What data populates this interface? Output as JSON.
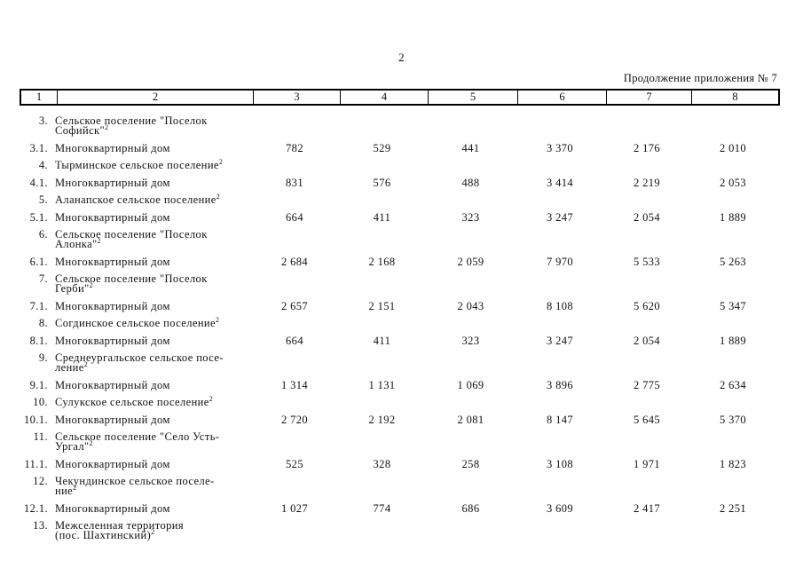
{
  "page": {
    "number": "2",
    "continuation_note": "Продолжение приложения № 7"
  },
  "table": {
    "header_cells": [
      "1",
      "2",
      "3",
      "4",
      "5",
      "6",
      "7",
      "8"
    ],
    "rows": [
      {
        "num": "3.",
        "name_lines": [
          "Сельское поселение \"Поселок",
          "Софийск\""
        ],
        "superscript": "2",
        "values": [
          "",
          "",
          "",
          "",
          "",
          ""
        ]
      },
      {
        "num": "3.1.",
        "name_lines": [
          "Многоквартирный дом"
        ],
        "superscript": "",
        "values": [
          "782",
          "529",
          "441",
          "3 370",
          "2 176",
          "2 010"
        ]
      },
      {
        "num": "4.",
        "name_lines": [
          "Тырминское сельское поселение"
        ],
        "superscript": "2",
        "values": [
          "",
          "",
          "",
          "",
          "",
          ""
        ]
      },
      {
        "num": "4.1.",
        "name_lines": [
          "Многоквартирный дом"
        ],
        "superscript": "",
        "values": [
          "831",
          "576",
          "488",
          "3 414",
          "2 219",
          "2 053"
        ]
      },
      {
        "num": "5.",
        "name_lines": [
          "Аланапское сельское поселение"
        ],
        "superscript": "2",
        "values": [
          "",
          "",
          "",
          "",
          "",
          ""
        ]
      },
      {
        "num": "5.1.",
        "name_lines": [
          "Многоквартирный дом"
        ],
        "superscript": "",
        "values": [
          "664",
          "411",
          "323",
          "3 247",
          "2 054",
          "1 889"
        ]
      },
      {
        "num": "6.",
        "name_lines": [
          "Сельское поселение \"Поселок",
          "Алонка\""
        ],
        "superscript": "2",
        "values": [
          "",
          "",
          "",
          "",
          "",
          ""
        ]
      },
      {
        "num": "6.1.",
        "name_lines": [
          "Многоквартирный дом"
        ],
        "superscript": "",
        "values": [
          "2 684",
          "2 168",
          "2 059",
          "7 970",
          "5 533",
          "5 263"
        ]
      },
      {
        "num": "7.",
        "name_lines": [
          "Сельское поселение \"Поселок",
          "Герби\""
        ],
        "superscript": "2",
        "values": [
          "",
          "",
          "",
          "",
          "",
          ""
        ]
      },
      {
        "num": "7.1.",
        "name_lines": [
          "Многоквартирный дом"
        ],
        "superscript": "",
        "values": [
          "2 657",
          "2 151",
          "2 043",
          "8 108",
          "5 620",
          "5 347"
        ]
      },
      {
        "num": "8.",
        "name_lines": [
          "Согдинское сельское поселение"
        ],
        "superscript": "2",
        "values": [
          "",
          "",
          "",
          "",
          "",
          ""
        ]
      },
      {
        "num": "8.1.",
        "name_lines": [
          "Многоквартирный дом"
        ],
        "superscript": "",
        "values": [
          "664",
          "411",
          "323",
          "3 247",
          "2 054",
          "1 889"
        ]
      },
      {
        "num": "9.",
        "name_lines": [
          "Среднеургальское сельское посе-",
          "ление"
        ],
        "superscript": "2",
        "values": [
          "",
          "",
          "",
          "",
          "",
          ""
        ]
      },
      {
        "num": "9.1.",
        "name_lines": [
          "Многоквартирный дом"
        ],
        "superscript": "",
        "values": [
          "1 314",
          "1 131",
          "1 069",
          "3 896",
          "2 775",
          "2 634"
        ]
      },
      {
        "num": "10.",
        "name_lines": [
          "Сулукское сельское поселение"
        ],
        "superscript": "2",
        "values": [
          "",
          "",
          "",
          "",
          "",
          ""
        ]
      },
      {
        "num": "10.1.",
        "name_lines": [
          "Многоквартирный дом"
        ],
        "superscript": "",
        "values": [
          "2 720",
          "2 192",
          "2 081",
          "8 147",
          "5 645",
          "5 370"
        ]
      },
      {
        "num": "11.",
        "name_lines": [
          "Сельское поселение \"Село Усть-",
          "Ургал\""
        ],
        "superscript": "2",
        "values": [
          "",
          "",
          "",
          "",
          "",
          ""
        ]
      },
      {
        "num": "11.1.",
        "name_lines": [
          "Многоквартирный дом"
        ],
        "superscript": "",
        "values": [
          "525",
          "328",
          "258",
          "3 108",
          "1 971",
          "1 823"
        ]
      },
      {
        "num": "12.",
        "name_lines": [
          "Чекундинское сельское поселе-",
          "ние"
        ],
        "superscript": "2",
        "values": [
          "",
          "",
          "",
          "",
          "",
          ""
        ]
      },
      {
        "num": "12.1.",
        "name_lines": [
          "Многоквартирный дом"
        ],
        "superscript": "",
        "values": [
          "1 027",
          "774",
          "686",
          "3 609",
          "2 417",
          "2 251"
        ]
      },
      {
        "num": "13.",
        "name_lines": [
          "Межселенная территория",
          "(пос. Шахтинский)"
        ],
        "superscript": "2",
        "values": [
          "",
          "",
          "",
          "",
          "",
          ""
        ]
      }
    ]
  }
}
